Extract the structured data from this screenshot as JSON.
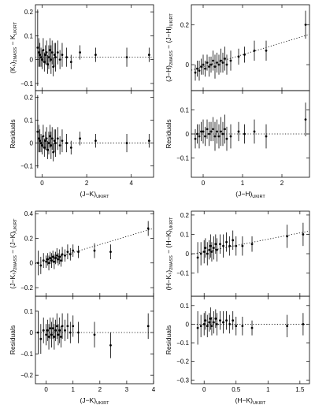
{
  "figure": {
    "panels": [
      {
        "id": "top-left",
        "xlim": [
          -0.3,
          5.0
        ],
        "xticks": [
          0,
          2,
          4
        ],
        "xlabel": {
          "main": "(J−K)",
          "sub": "UKIRT"
        },
        "upper": {
          "ylim": [
            -0.13,
            0.23
          ],
          "yticks": [
            -0.1,
            0,
            0.1,
            0.2
          ],
          "ylabel": {
            "main": "(Kₛ)",
            "sub1": "2MASS",
            "mid": " − K",
            "sub2": "UKIRT"
          },
          "fit": {
            "slope": 0.0,
            "intercept": 0.01
          }
        },
        "lower": {
          "ylim": [
            -0.15,
            0.23
          ],
          "yticks": [
            -0.1,
            0,
            0.1,
            0.2
          ],
          "ylabel": {
            "main": "Residuals"
          },
          "fit": {
            "slope": 0.0,
            "intercept": 0.0
          }
        }
      },
      {
        "id": "top-right",
        "xlim": [
          -0.3,
          2.7
        ],
        "xticks": [
          0,
          1,
          2
        ],
        "xlabel": {
          "main": "(J−H)",
          "sub": "UKIRT"
        },
        "upper": {
          "ylim": [
            -0.13,
            0.3
          ],
          "yticks": [
            0,
            0.2
          ],
          "ylabel": {
            "main": "(J−H)",
            "sub1": "2MASS",
            "mid": " − (J−H)",
            "sub2": "UKIRT"
          },
          "fit": {
            "slope": 0.06,
            "intercept": -0.01
          }
        },
        "lower": {
          "ylim": [
            -0.18,
            0.18
          ],
          "yticks": [
            -0.1,
            0,
            0.1
          ],
          "ylabel": {
            "main": "Residuals"
          },
          "fit": {
            "slope": 0.0,
            "intercept": 0.0
          }
        }
      },
      {
        "id": "bottom-left",
        "xlim": [
          -0.4,
          4.0
        ],
        "xticks": [
          0,
          1,
          2,
          3,
          4
        ],
        "xlabel": {
          "main": "(J−K)",
          "sub": "UKIRT"
        },
        "upper": {
          "ylim": [
            -0.27,
            0.42
          ],
          "yticks": [
            -0.2,
            0,
            0.2,
            0.4
          ],
          "ylabel": {
            "main": "(J−Kₛ)",
            "sub1": "2MASS",
            "mid": " − (J−K)",
            "sub2": "UKIRT"
          },
          "fit": {
            "slope": 0.065,
            "intercept": 0.02
          }
        },
        "lower": {
          "ylim": [
            -0.24,
            0.17
          ],
          "yticks": [
            -0.2,
            -0.1,
            0,
            0.1
          ],
          "ylabel": {
            "main": "Residuals"
          },
          "fit": {
            "slope": 0.0,
            "intercept": 0.0
          }
        }
      },
      {
        "id": "bottom-right",
        "xlim": [
          -0.2,
          1.65
        ],
        "xticks": [
          0,
          0.5,
          1,
          1.5
        ],
        "xlabel": {
          "main": "(H−K)",
          "sub": "UKIRT"
        },
        "upper": {
          "ylim": [
            -0.22,
            0.22
          ],
          "yticks": [
            -0.1,
            0,
            0.1,
            0.2
          ],
          "ylabel": {
            "main": "(H−Kₛ)",
            "sub1": "2MASS",
            "mid": " − (H−K)",
            "sub2": "UKIRT"
          },
          "fit": {
            "slope": 0.065,
            "intercept": 0.01
          }
        },
        "lower": {
          "ylim": [
            -0.32,
            0.15
          ],
          "yticks": [
            -0.3,
            -0.2,
            -0.1,
            0,
            0.1
          ],
          "ylabel": {
            "main": "Residuals"
          },
          "fit": {
            "slope": 0.0,
            "intercept": 0.0
          }
        }
      }
    ]
  },
  "chart_data": [
    {
      "type": "scatter",
      "panel": "top-left-upper",
      "xlabel": "(J−K)UKIRT",
      "ylabel": "(Ks)2MASS − KUKIRT",
      "xlim": [
        -0.3,
        5.0
      ],
      "ylim": [
        -0.13,
        0.23
      ],
      "points": [
        [
          -0.2,
          0.05,
          0.16
        ],
        [
          -0.15,
          0.03,
          0.06
        ],
        [
          -0.1,
          0.02,
          0.05
        ],
        [
          -0.05,
          0.01,
          0.04
        ],
        [
          0.0,
          0.0,
          0.04
        ],
        [
          0.05,
          0.04,
          0.05
        ],
        [
          0.1,
          -0.01,
          0.04
        ],
        [
          0.15,
          0.02,
          0.04
        ],
        [
          0.2,
          0.03,
          0.05
        ],
        [
          0.25,
          -0.02,
          0.04
        ],
        [
          0.3,
          0.01,
          0.05
        ],
        [
          0.35,
          0.04,
          0.05
        ],
        [
          0.4,
          0.0,
          0.06
        ],
        [
          0.45,
          0.03,
          0.05
        ],
        [
          0.5,
          -0.03,
          0.04
        ],
        [
          0.55,
          0.02,
          0.05
        ],
        [
          0.6,
          0.01,
          0.06
        ],
        [
          0.7,
          0.03,
          0.05
        ],
        [
          0.8,
          0.0,
          0.04
        ],
        [
          0.9,
          0.02,
          0.05
        ],
        [
          1.1,
          0.01,
          0.04
        ],
        [
          1.3,
          -0.01,
          0.03
        ],
        [
          1.7,
          0.03,
          0.03
        ],
        [
          2.4,
          0.02,
          0.03
        ],
        [
          3.8,
          0.01,
          0.04
        ],
        [
          4.8,
          0.02,
          0.03
        ]
      ],
      "fit_line": {
        "slope": 0.0,
        "intercept": 0.01
      }
    },
    {
      "type": "scatter",
      "panel": "top-left-lower",
      "xlabel": "(J−K)UKIRT",
      "ylabel": "Residuals",
      "xlim": [
        -0.3,
        5.0
      ],
      "ylim": [
        -0.15,
        0.23
      ],
      "points": [
        [
          -0.2,
          0.05,
          0.16
        ],
        [
          -0.15,
          0.02,
          0.06
        ],
        [
          -0.1,
          0.01,
          0.05
        ],
        [
          -0.05,
          0.0,
          0.04
        ],
        [
          0.0,
          -0.01,
          0.04
        ],
        [
          0.05,
          0.03,
          0.05
        ],
        [
          0.1,
          -0.02,
          0.04
        ],
        [
          0.15,
          0.01,
          0.04
        ],
        [
          0.2,
          0.02,
          0.05
        ],
        [
          0.25,
          -0.03,
          0.04
        ],
        [
          0.3,
          0.0,
          0.05
        ],
        [
          0.35,
          0.03,
          0.05
        ],
        [
          0.4,
          -0.01,
          0.06
        ],
        [
          0.45,
          0.02,
          0.05
        ],
        [
          0.5,
          -0.04,
          0.04
        ],
        [
          0.55,
          0.01,
          0.05
        ],
        [
          0.6,
          0.0,
          0.06
        ],
        [
          0.7,
          0.02,
          0.05
        ],
        [
          0.8,
          -0.01,
          0.04
        ],
        [
          0.9,
          0.01,
          0.05
        ],
        [
          1.1,
          0.0,
          0.04
        ],
        [
          1.3,
          -0.02,
          0.03
        ],
        [
          1.7,
          0.02,
          0.03
        ],
        [
          2.4,
          0.01,
          0.03
        ],
        [
          3.8,
          0.0,
          0.04
        ],
        [
          4.8,
          0.01,
          0.03
        ]
      ],
      "fit_line": {
        "slope": 0.0,
        "intercept": 0.0
      }
    },
    {
      "type": "scatter",
      "panel": "top-right-upper",
      "xlabel": "(J−H)UKIRT",
      "ylabel": "(J−H)2MASS − (J−H)UKIRT",
      "xlim": [
        -0.3,
        2.7
      ],
      "ylim": [
        -0.13,
        0.3
      ],
      "points": [
        [
          -0.2,
          -0.04,
          0.04
        ],
        [
          -0.15,
          -0.02,
          0.04
        ],
        [
          -0.1,
          -0.03,
          0.05
        ],
        [
          -0.05,
          -0.01,
          0.04
        ],
        [
          0.0,
          0.0,
          0.05
        ],
        [
          0.05,
          -0.02,
          0.04
        ],
        [
          0.1,
          0.01,
          0.04
        ],
        [
          0.15,
          -0.01,
          0.05
        ],
        [
          0.2,
          0.0,
          0.04
        ],
        [
          0.25,
          0.02,
          0.05
        ],
        [
          0.3,
          -0.01,
          0.06
        ],
        [
          0.35,
          0.01,
          0.05
        ],
        [
          0.4,
          0.0,
          0.05
        ],
        [
          0.45,
          0.02,
          0.06
        ],
        [
          0.5,
          0.01,
          0.05
        ],
        [
          0.55,
          0.03,
          0.06
        ],
        [
          0.6,
          0.0,
          0.05
        ],
        [
          0.7,
          0.02,
          0.05
        ],
        [
          0.9,
          0.04,
          0.04
        ],
        [
          1.05,
          0.05,
          0.04
        ],
        [
          1.3,
          0.07,
          0.05
        ],
        [
          1.6,
          0.07,
          0.05
        ],
        [
          2.6,
          0.2,
          0.07
        ]
      ],
      "fit_line": {
        "slope": 0.06,
        "intercept": -0.01
      }
    },
    {
      "type": "scatter",
      "panel": "top-right-lower",
      "xlabel": "(J−H)UKIRT",
      "ylabel": "Residuals",
      "xlim": [
        -0.3,
        2.7
      ],
      "ylim": [
        -0.18,
        0.18
      ],
      "points": [
        [
          -0.2,
          -0.02,
          0.04
        ],
        [
          -0.15,
          0.0,
          0.04
        ],
        [
          -0.1,
          -0.01,
          0.05
        ],
        [
          -0.05,
          0.01,
          0.04
        ],
        [
          0.0,
          0.01,
          0.05
        ],
        [
          0.05,
          -0.01,
          0.04
        ],
        [
          0.1,
          0.02,
          0.04
        ],
        [
          0.15,
          0.0,
          0.05
        ],
        [
          0.2,
          0.01,
          0.04
        ],
        [
          0.25,
          0.02,
          0.05
        ],
        [
          0.3,
          -0.01,
          0.06
        ],
        [
          0.35,
          0.01,
          0.05
        ],
        [
          0.4,
          -0.01,
          0.05
        ],
        [
          0.45,
          0.01,
          0.06
        ],
        [
          0.5,
          0.0,
          0.05
        ],
        [
          0.55,
          0.02,
          0.06
        ],
        [
          0.6,
          -0.02,
          0.05
        ],
        [
          0.7,
          -0.01,
          0.05
        ],
        [
          0.9,
          0.01,
          0.04
        ],
        [
          1.05,
          0.0,
          0.04
        ],
        [
          1.3,
          0.01,
          0.05
        ],
        [
          1.6,
          -0.01,
          0.05
        ],
        [
          2.6,
          0.06,
          0.07
        ]
      ],
      "fit_line": {
        "slope": 0.0,
        "intercept": 0.0
      }
    },
    {
      "type": "scatter",
      "panel": "bottom-left-upper",
      "xlabel": "(J−K)UKIRT",
      "ylabel": "(J−Ks)2MASS − (J−K)UKIRT",
      "xlim": [
        -0.4,
        4.0
      ],
      "ylim": [
        -0.27,
        0.42
      ],
      "points": [
        [
          -0.3,
          0.0,
          0.1
        ],
        [
          -0.2,
          -0.02,
          0.07
        ],
        [
          -0.1,
          0.02,
          0.06
        ],
        [
          0.0,
          0.01,
          0.05
        ],
        [
          0.05,
          0.03,
          0.05
        ],
        [
          0.1,
          0.0,
          0.06
        ],
        [
          0.15,
          0.04,
          0.05
        ],
        [
          0.2,
          0.02,
          0.06
        ],
        [
          0.25,
          0.05,
          0.05
        ],
        [
          0.3,
          0.01,
          0.06
        ],
        [
          0.35,
          0.04,
          0.05
        ],
        [
          0.4,
          0.06,
          0.06
        ],
        [
          0.45,
          0.03,
          0.05
        ],
        [
          0.5,
          0.05,
          0.06
        ],
        [
          0.55,
          0.02,
          0.05
        ],
        [
          0.6,
          0.07,
          0.06
        ],
        [
          0.7,
          0.06,
          0.05
        ],
        [
          0.8,
          0.09,
          0.06
        ],
        [
          0.9,
          0.07,
          0.05
        ],
        [
          1.0,
          0.1,
          0.05
        ],
        [
          1.2,
          0.09,
          0.05
        ],
        [
          1.8,
          0.1,
          0.06
        ],
        [
          2.4,
          0.09,
          0.06
        ],
        [
          3.8,
          0.28,
          0.06
        ]
      ],
      "fit_line": {
        "slope": 0.065,
        "intercept": 0.02
      }
    },
    {
      "type": "scatter",
      "panel": "bottom-left-lower",
      "xlabel": "(J−K)UKIRT",
      "ylabel": "Residuals",
      "xlim": [
        -0.4,
        4.0
      ],
      "ylim": [
        -0.24,
        0.17
      ],
      "points": [
        [
          -0.3,
          0.0,
          0.1
        ],
        [
          -0.2,
          -0.03,
          0.07
        ],
        [
          -0.1,
          0.01,
          0.06
        ],
        [
          0.0,
          -0.01,
          0.05
        ],
        [
          0.05,
          0.01,
          0.05
        ],
        [
          0.1,
          -0.02,
          0.06
        ],
        [
          0.15,
          0.02,
          0.05
        ],
        [
          0.2,
          -0.01,
          0.06
        ],
        [
          0.25,
          0.02,
          0.05
        ],
        [
          0.3,
          -0.02,
          0.06
        ],
        [
          0.35,
          0.01,
          0.05
        ],
        [
          0.4,
          0.03,
          0.06
        ],
        [
          0.45,
          -0.01,
          0.05
        ],
        [
          0.5,
          0.01,
          0.06
        ],
        [
          0.55,
          -0.02,
          0.05
        ],
        [
          0.6,
          0.03,
          0.06
        ],
        [
          0.7,
          0.01,
          0.05
        ],
        [
          0.8,
          0.03,
          0.06
        ],
        [
          0.9,
          0.0,
          0.05
        ],
        [
          1.0,
          0.03,
          0.05
        ],
        [
          1.2,
          0.0,
          0.05
        ],
        [
          1.8,
          -0.01,
          0.06
        ],
        [
          2.4,
          -0.06,
          0.06
        ],
        [
          3.8,
          0.03,
          0.06
        ]
      ],
      "fit_line": {
        "slope": 0.0,
        "intercept": 0.0
      }
    },
    {
      "type": "scatter",
      "panel": "bottom-right-upper",
      "xlabel": "(H−K)UKIRT",
      "ylabel": "(H−Ks)2MASS − (H−K)UKIRT",
      "xlim": [
        -0.2,
        1.65
      ],
      "ylim": [
        -0.22,
        0.22
      ],
      "points": [
        [
          -0.1,
          -0.02,
          0.08
        ],
        [
          -0.05,
          0.0,
          0.06
        ],
        [
          0.0,
          0.01,
          0.06
        ],
        [
          0.02,
          0.03,
          0.05
        ],
        [
          0.05,
          0.0,
          0.06
        ],
        [
          0.08,
          0.02,
          0.05
        ],
        [
          0.1,
          0.04,
          0.06
        ],
        [
          0.12,
          0.01,
          0.05
        ],
        [
          0.15,
          0.03,
          0.06
        ],
        [
          0.18,
          0.05,
          0.05
        ],
        [
          0.2,
          0.02,
          0.06
        ],
        [
          0.25,
          0.05,
          0.05
        ],
        [
          0.3,
          0.04,
          0.06
        ],
        [
          0.35,
          0.06,
          0.05
        ],
        [
          0.4,
          0.04,
          0.05
        ],
        [
          0.45,
          0.07,
          0.05
        ],
        [
          0.5,
          0.04,
          0.05
        ],
        [
          0.6,
          0.04,
          0.05
        ],
        [
          0.75,
          0.05,
          0.04
        ],
        [
          1.3,
          0.09,
          0.06
        ],
        [
          1.55,
          0.1,
          0.06
        ]
      ],
      "fit_line": {
        "slope": 0.065,
        "intercept": 0.01
      }
    },
    {
      "type": "scatter",
      "panel": "bottom-right-lower",
      "xlabel": "(H−K)UKIRT",
      "ylabel": "Residuals",
      "xlim": [
        -0.2,
        1.65
      ],
      "ylim": [
        -0.32,
        0.15
      ],
      "points": [
        [
          -0.1,
          -0.02,
          0.09
        ],
        [
          -0.05,
          -0.01,
          0.06
        ],
        [
          0.0,
          0.0,
          0.06
        ],
        [
          0.02,
          0.02,
          0.05
        ],
        [
          0.05,
          -0.01,
          0.06
        ],
        [
          0.08,
          0.01,
          0.05
        ],
        [
          0.1,
          0.03,
          0.06
        ],
        [
          0.12,
          -0.01,
          0.05
        ],
        [
          0.15,
          0.01,
          0.06
        ],
        [
          0.18,
          0.03,
          0.05
        ],
        [
          0.2,
          0.0,
          0.06
        ],
        [
          0.25,
          0.02,
          0.05
        ],
        [
          0.3,
          0.01,
          0.06
        ],
        [
          0.35,
          0.02,
          0.05
        ],
        [
          0.4,
          0.0,
          0.05
        ],
        [
          0.45,
          0.02,
          0.05
        ],
        [
          0.5,
          -0.01,
          0.05
        ],
        [
          0.6,
          -0.01,
          0.05
        ],
        [
          0.75,
          -0.02,
          0.04
        ],
        [
          1.3,
          -0.01,
          0.06
        ],
        [
          1.55,
          0.0,
          0.06
        ]
      ],
      "fit_line": {
        "slope": 0.0,
        "intercept": 0.0
      }
    }
  ]
}
